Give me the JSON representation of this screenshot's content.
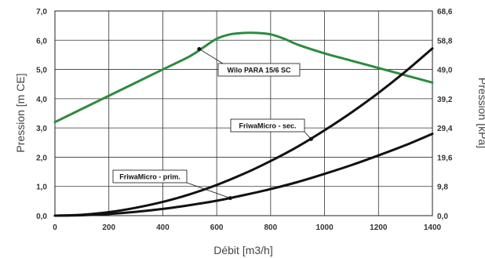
{
  "chart_data": {
    "type": "line",
    "xlabel": "Débit [m3/h]",
    "ylabel_left": "Pression [m CE]",
    "ylabel_right": "Pression [kPa]",
    "xlim": [
      0,
      1400
    ],
    "ylim_left": [
      0,
      7
    ],
    "ylim_right": [
      0,
      68.6
    ],
    "x_ticks": [
      "0",
      "200",
      "400",
      "600",
      "800",
      "1000",
      "1200",
      "1400"
    ],
    "y_ticks_left": [
      "0,0",
      "1,0",
      "2,0",
      "3,0",
      "4,0",
      "5,0",
      "6,0",
      "7,0"
    ],
    "y_ticks_right": [
      "0,0",
      "9,8",
      "19,6",
      "29,4",
      "39,2",
      "49,0",
      "58,8",
      "68,6"
    ],
    "grid": true,
    "series": [
      {
        "name": "Wilo PARA 15/6 SC",
        "color": "#2e8b3e",
        "x": [
          0,
          100,
          200,
          300,
          400,
          500,
          550,
          600,
          650,
          700,
          750,
          800,
          850,
          900,
          1000,
          1100,
          1200,
          1300,
          1400
        ],
        "y": [
          3.2,
          3.65,
          4.1,
          4.55,
          5.0,
          5.45,
          5.75,
          6.05,
          6.2,
          6.25,
          6.25,
          6.2,
          6.05,
          5.85,
          5.55,
          5.3,
          5.05,
          4.8,
          4.55
        ]
      },
      {
        "name": "FriwaMicro - sec.",
        "color": "#111111",
        "x": [
          0,
          100,
          200,
          300,
          400,
          500,
          600,
          700,
          800,
          900,
          1000,
          1100,
          1200,
          1300,
          1400
        ],
        "y": [
          0.0,
          0.03,
          0.12,
          0.27,
          0.47,
          0.73,
          1.05,
          1.43,
          1.87,
          2.36,
          2.92,
          3.53,
          4.2,
          4.93,
          5.72
        ]
      },
      {
        "name": "FriwaMicro - prim.",
        "color": "#111111",
        "x": [
          0,
          100,
          200,
          300,
          400,
          500,
          600,
          700,
          800,
          900,
          1000,
          1100,
          1200,
          1300,
          1400
        ],
        "y": [
          0.0,
          0.014,
          0.057,
          0.13,
          0.23,
          0.36,
          0.51,
          0.7,
          0.91,
          1.15,
          1.43,
          1.73,
          2.06,
          2.41,
          2.8
        ]
      }
    ],
    "annotations": [
      {
        "label": "Wilo PARA 15/6 SC",
        "series": 0,
        "point_x": 535,
        "point_y": 5.7
      },
      {
        "label": "FriwaMicro - sec.",
        "series": 1,
        "point_x": 950,
        "point_y": 2.62
      },
      {
        "label": "FriwaMicro - prim.",
        "series": 2,
        "point_x": 650,
        "point_y": 0.6
      }
    ]
  }
}
